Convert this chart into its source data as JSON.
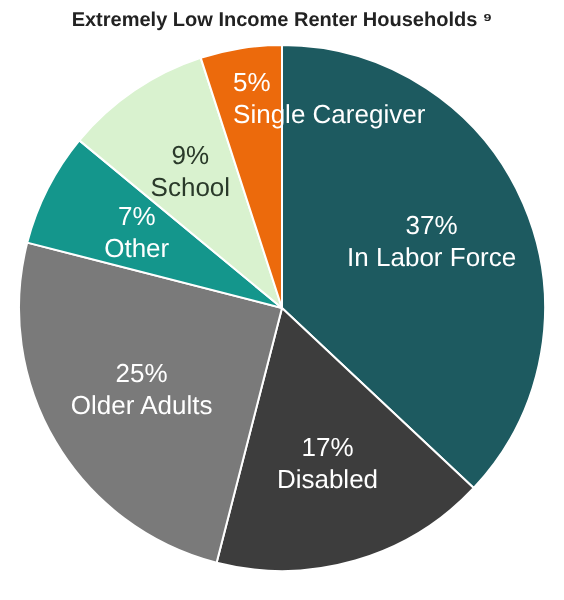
{
  "chart_data": {
    "type": "pie",
    "title": "Extremely Low Income Renter Households ⁹",
    "categories": [
      "In Labor Force",
      "Disabled",
      "Older Adults",
      "Other",
      "School",
      "Single Caregiver"
    ],
    "values": [
      37,
      17,
      25,
      7,
      9,
      5
    ],
    "value_labels": [
      "37%",
      "17%",
      "25%",
      "7%",
      "9%",
      "5%"
    ],
    "colors": [
      "#1d5a60",
      "#3d3d3d",
      "#7a7a7a",
      "#14968c",
      "#d9f2cf",
      "#ec6a0c"
    ],
    "legend": false
  }
}
